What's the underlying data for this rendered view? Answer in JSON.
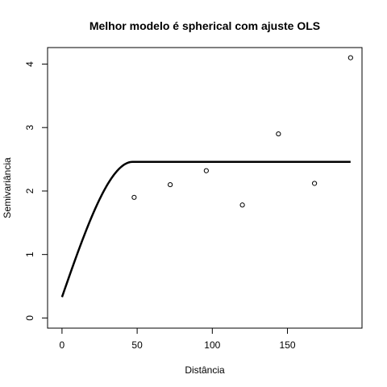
{
  "chart_data": {
    "type": "scatter",
    "title": "Melhor modelo é spherical com ajuste  OLS",
    "xlabel": "Distância",
    "ylabel": "Semivariância",
    "xlim": [
      -9.6,
      199.6
    ],
    "ylim": [
      -0.16,
      4.26
    ],
    "x_ticks": [
      0,
      50,
      100,
      150
    ],
    "y_ticks": [
      0,
      1,
      2,
      3,
      4
    ],
    "grid": false,
    "legend": "none",
    "points": [
      {
        "x": 48,
        "y": 1.9
      },
      {
        "x": 72,
        "y": 2.1
      },
      {
        "x": 96,
        "y": 2.32
      },
      {
        "x": 120,
        "y": 1.78
      },
      {
        "x": 144,
        "y": 2.9
      },
      {
        "x": 168,
        "y": 2.12
      },
      {
        "x": 192,
        "y": 4.1
      }
    ],
    "model_curve": {
      "model": "spherical",
      "nugget": 0.33,
      "sill": 2.46,
      "range": 47,
      "x_start": 0,
      "x_end": 192
    }
  }
}
